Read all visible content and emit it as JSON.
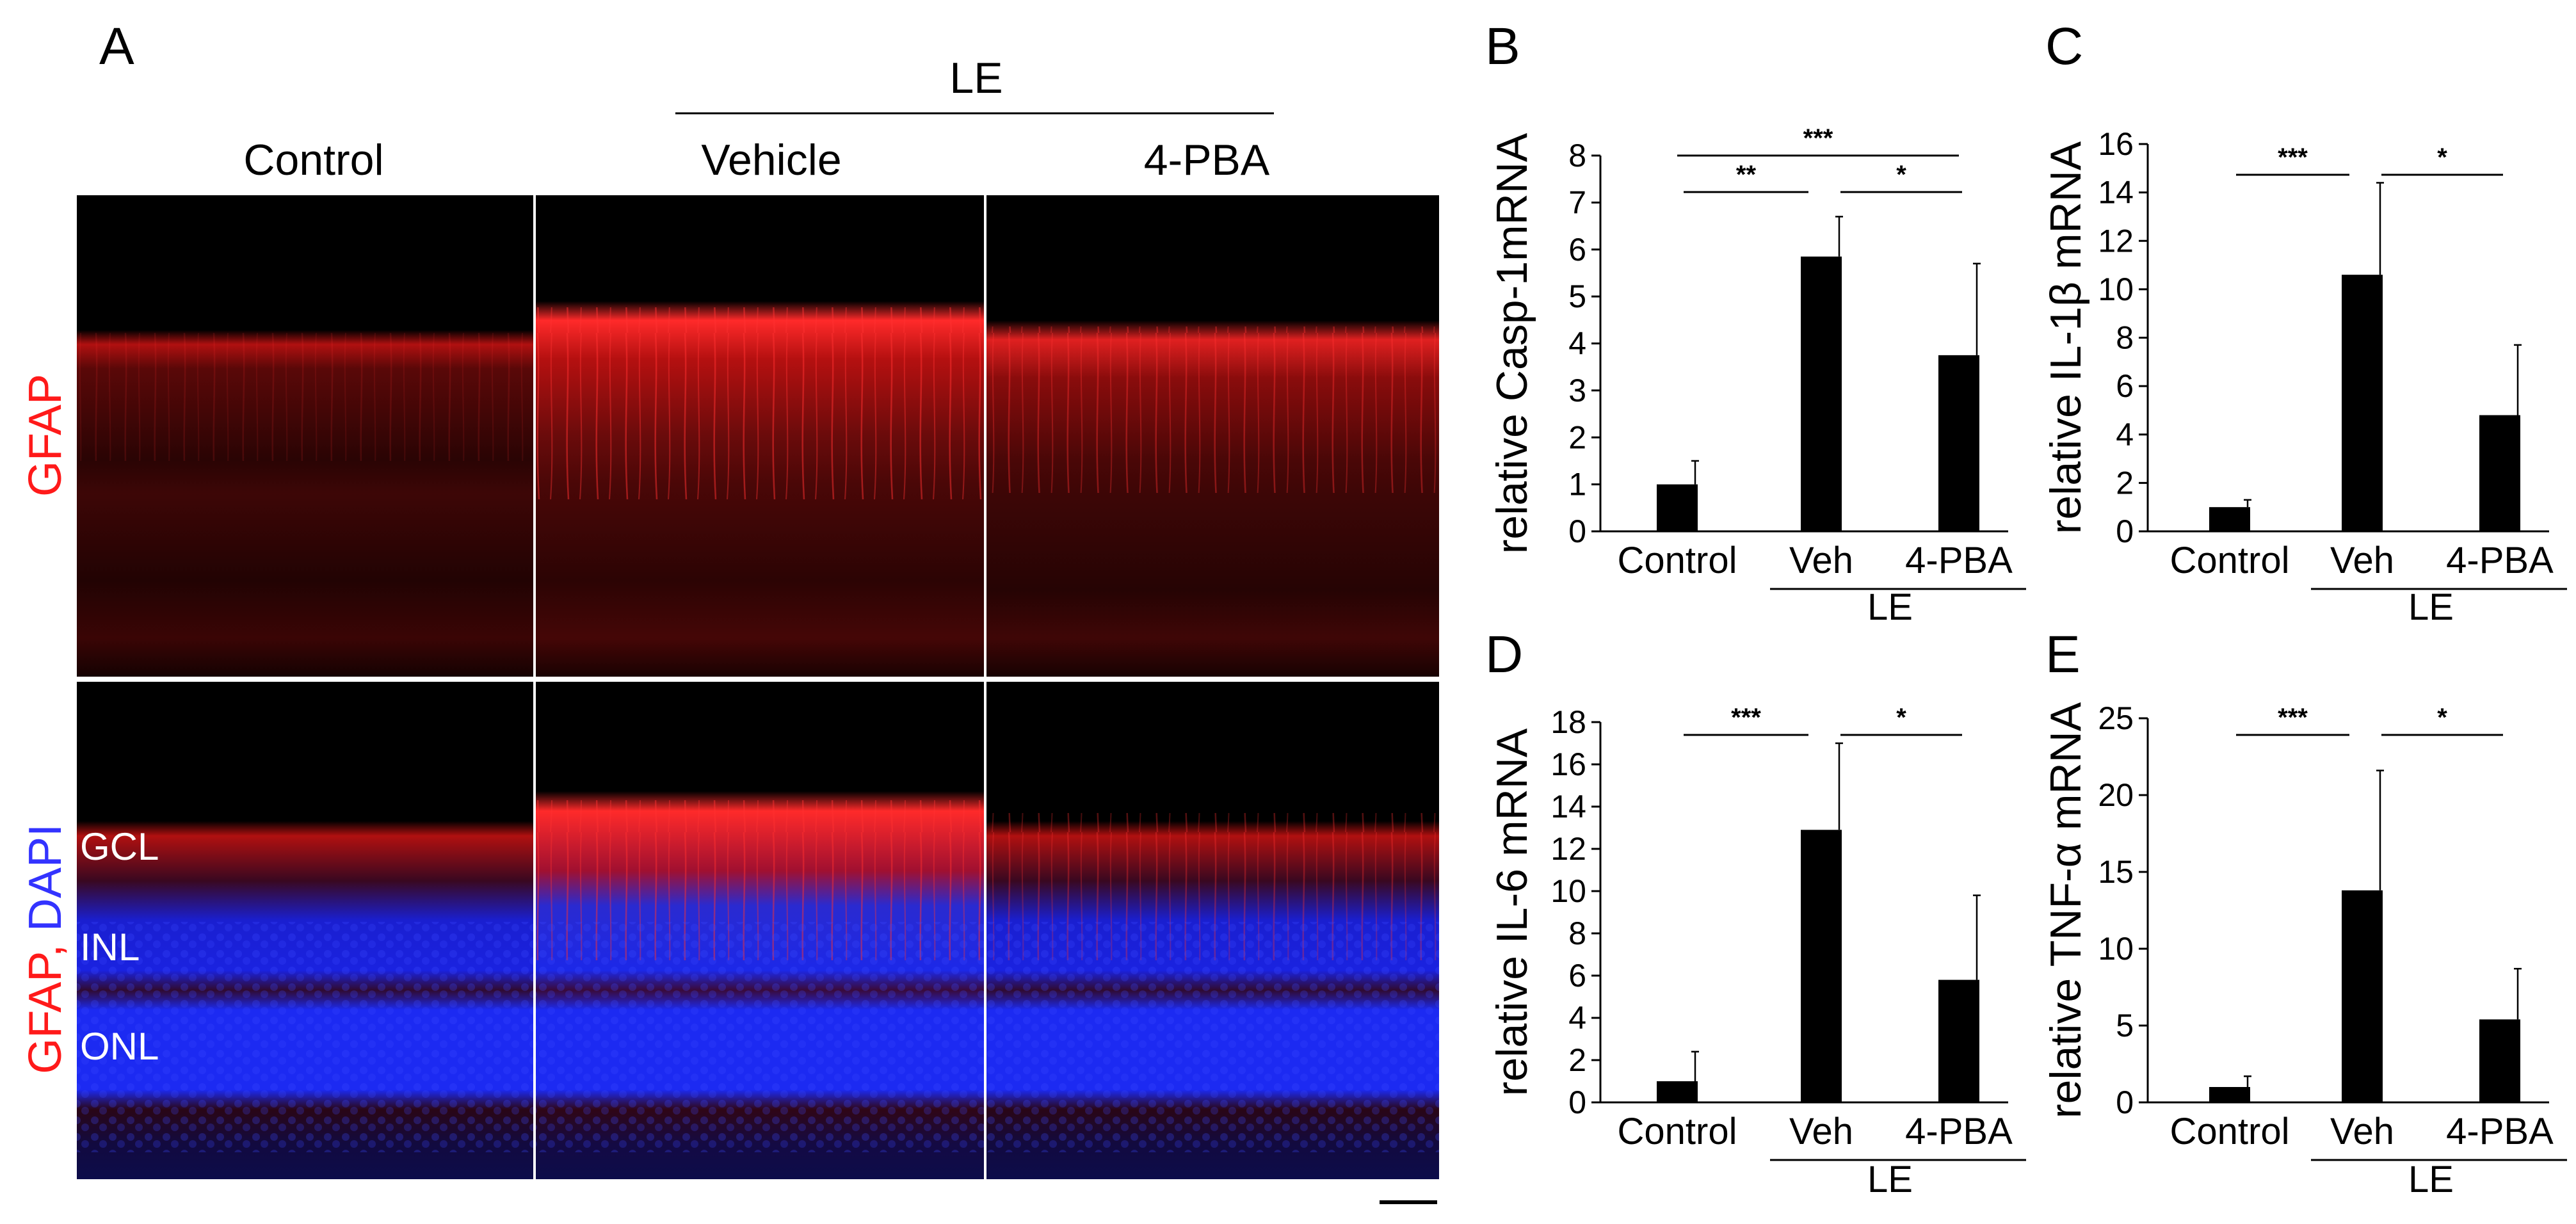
{
  "colors": {
    "gfap": "#ff2020",
    "dapi": "#1c28ff",
    "bar": "#000000"
  },
  "panel_a": {
    "letter": "A",
    "group_header": "LE",
    "columns": [
      "Control",
      "Vehicle",
      "4-PBA"
    ],
    "row1_label": "GFAP",
    "row2_label_gfap": "GFAP,",
    "row2_label_dapi": "DAPI",
    "layers": [
      "GCL",
      "INL",
      "ONL"
    ]
  },
  "chart_data": [
    {
      "letter": "B",
      "type": "bar",
      "categories": [
        "Control",
        "Veh",
        "4-PBA"
      ],
      "group_label": "LE",
      "values": [
        1.0,
        5.85,
        3.75
      ],
      "errors": [
        0.5,
        0.85,
        1.95
      ],
      "ylabel": "relative Casp-1mRNA",
      "ylim": [
        0,
        8
      ],
      "yticks": [
        0,
        1,
        2,
        3,
        4,
        5,
        6,
        7,
        8
      ],
      "significance": [
        {
          "from": 0,
          "to": 1,
          "label": "**"
        },
        {
          "from": 1,
          "to": 2,
          "label": "*"
        },
        {
          "from": 0,
          "to": 2,
          "label": "***"
        }
      ]
    },
    {
      "letter": "C",
      "type": "bar",
      "categories": [
        "Control",
        "Veh",
        "4-PBA"
      ],
      "group_label": "LE",
      "values": [
        1.0,
        10.6,
        4.8
      ],
      "errors": [
        0.3,
        3.8,
        2.9
      ],
      "ylabel": "relative IL-1β mRNA",
      "ylim": [
        0,
        16
      ],
      "yticks": [
        0,
        2,
        4,
        6,
        8,
        10,
        12,
        14,
        16
      ],
      "significance": [
        {
          "from": 0,
          "to": 1,
          "label": "***"
        },
        {
          "from": 1,
          "to": 2,
          "label": "*"
        }
      ]
    },
    {
      "letter": "D",
      "type": "bar",
      "categories": [
        "Control",
        "Veh",
        "4-PBA"
      ],
      "group_label": "LE",
      "values": [
        1.0,
        12.9,
        5.8
      ],
      "errors": [
        1.4,
        4.1,
        4.0
      ],
      "ylabel": "relative IL-6 mRNA",
      "ylim": [
        0,
        18
      ],
      "yticks": [
        0,
        2,
        4,
        6,
        8,
        10,
        12,
        14,
        16,
        18
      ],
      "significance": [
        {
          "from": 0,
          "to": 1,
          "label": "***"
        },
        {
          "from": 1,
          "to": 2,
          "label": "*"
        }
      ]
    },
    {
      "letter": "E",
      "type": "bar",
      "categories": [
        "Control",
        "Veh",
        "4-PBA"
      ],
      "group_label": "LE",
      "values": [
        1.0,
        13.8,
        5.4
      ],
      "errors": [
        0.7,
        7.8,
        3.3
      ],
      "ylabel": "relative TNF-α mRNA",
      "ylim": [
        0,
        25
      ],
      "yticks": [
        0,
        5,
        10,
        15,
        20,
        25
      ],
      "significance": [
        {
          "from": 0,
          "to": 1,
          "label": "***"
        },
        {
          "from": 1,
          "to": 2,
          "label": "*"
        }
      ]
    }
  ]
}
